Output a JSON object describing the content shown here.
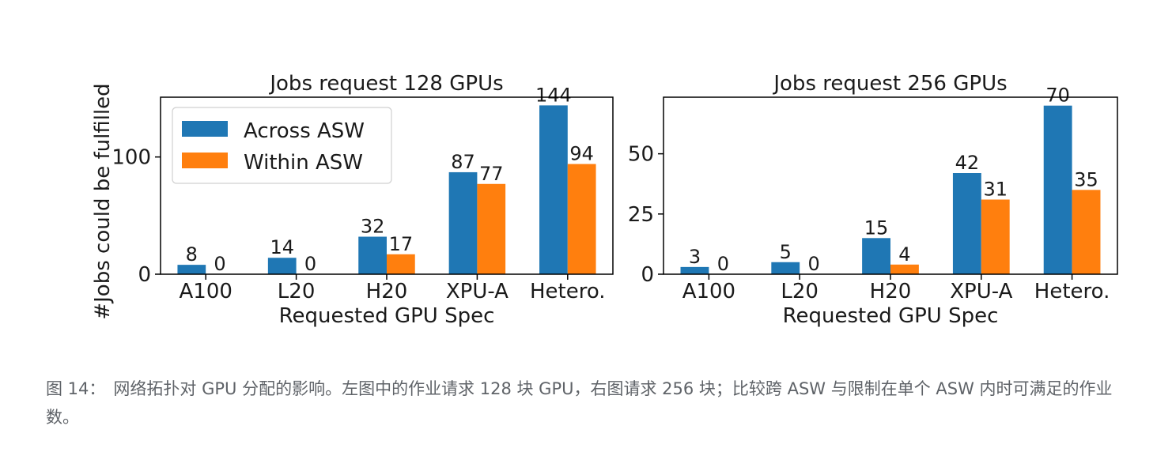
{
  "colors": {
    "across": "#1f77b4",
    "within": "#ff7f0e"
  },
  "ylabel_shared": "#Jobs could be fulfilled",
  "chart_data": [
    {
      "type": "bar",
      "title": "Jobs request 128 GPUs",
      "xlabel": "Requested GPU Spec",
      "ylabel": "#Jobs could be fulfilled",
      "categories": [
        "A100",
        "L20",
        "H20",
        "XPU-A",
        "Hetero."
      ],
      "series": [
        {
          "name": "Across ASW",
          "values": [
            8,
            14,
            32,
            87,
            144
          ]
        },
        {
          "name": "Within ASW",
          "values": [
            0,
            0,
            17,
            77,
            94
          ]
        }
      ],
      "yticks": [
        0,
        100
      ],
      "ylim": [
        0,
        151
      ],
      "legend": "upper-left",
      "grid": false
    },
    {
      "type": "bar",
      "title": "Jobs request 256 GPUs",
      "xlabel": "Requested GPU Spec",
      "ylabel": "",
      "categories": [
        "A100",
        "L20",
        "H20",
        "XPU-A",
        "Hetero."
      ],
      "series": [
        {
          "name": "Across ASW",
          "values": [
            3,
            5,
            15,
            42,
            70
          ]
        },
        {
          "name": "Within ASW",
          "values": [
            0,
            0,
            4,
            31,
            35
          ]
        }
      ],
      "yticks": [
        0,
        25,
        50
      ],
      "ylim": [
        0,
        73.5
      ],
      "legend": "none",
      "grid": false
    }
  ],
  "caption": {
    "label": "图 14：",
    "text": "网络拓扑对 GPU 分配的影响。左图中的作业请求 128 块 GPU，右图请求 256 块；比较跨 ASW 与限制在单个 ASW 内时可满足的作业数。"
  }
}
